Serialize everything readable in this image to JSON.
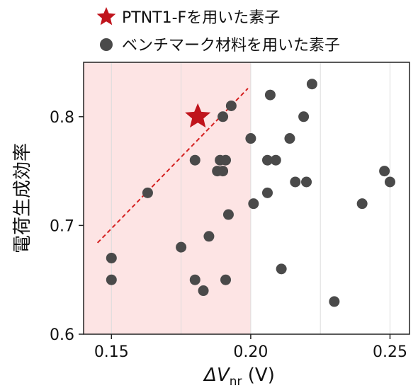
{
  "chart_data": {
    "type": "scatter",
    "xlabel": "ΔV",
    "xlabel_sub": "nr",
    "xlabel_unit": " (V)",
    "ylabel": "電荷生成効率",
    "xlim": [
      0.14,
      0.257
    ],
    "ylim": [
      0.6,
      0.85
    ],
    "xticks": [
      0.15,
      0.2,
      0.25
    ],
    "xtick_labels": [
      "0.15",
      "0.20",
      "0.25"
    ],
    "yticks": [
      0.6,
      0.7,
      0.8
    ],
    "ytick_labels": [
      "0.6",
      "0.7",
      "0.8"
    ],
    "vertical_gridlines": [
      0.15,
      0.175,
      0.2,
      0.225,
      0.25
    ],
    "shaded_region_x": [
      0.14,
      0.2
    ],
    "legend_position": "top-left, above plot",
    "series": [
      {
        "name": "PTNT1-Fを用いた素子",
        "marker": "star",
        "color": "#c0141c",
        "points": [
          [
            0.181,
            0.8
          ]
        ]
      },
      {
        "name": "ベンチマーク材料を用いた素子",
        "marker": "circle",
        "color": "#4a4a4a",
        "points": [
          [
            0.15,
            0.67
          ],
          [
            0.15,
            0.65
          ],
          [
            0.163,
            0.73
          ],
          [
            0.175,
            0.68
          ],
          [
            0.18,
            0.76
          ],
          [
            0.18,
            0.65
          ],
          [
            0.183,
            0.64
          ],
          [
            0.185,
            0.69
          ],
          [
            0.188,
            0.75
          ],
          [
            0.189,
            0.76
          ],
          [
            0.19,
            0.8
          ],
          [
            0.19,
            0.75
          ],
          [
            0.191,
            0.76
          ],
          [
            0.191,
            0.65
          ],
          [
            0.192,
            0.71
          ],
          [
            0.193,
            0.81
          ],
          [
            0.2,
            0.78
          ],
          [
            0.201,
            0.72
          ],
          [
            0.206,
            0.76
          ],
          [
            0.206,
            0.73
          ],
          [
            0.207,
            0.82
          ],
          [
            0.209,
            0.76
          ],
          [
            0.211,
            0.66
          ],
          [
            0.214,
            0.78
          ],
          [
            0.216,
            0.74
          ],
          [
            0.219,
            0.8
          ],
          [
            0.22,
            0.74
          ],
          [
            0.222,
            0.83
          ],
          [
            0.23,
            0.63
          ],
          [
            0.24,
            0.72
          ],
          [
            0.248,
            0.75
          ],
          [
            0.25,
            0.74
          ]
        ]
      }
    ],
    "trend_line": {
      "style": "dashed",
      "color": "#d42020",
      "from": [
        0.145,
        0.684
      ],
      "to": [
        0.199,
        0.826
      ]
    }
  },
  "colors": {
    "shade": "#fde4e4",
    "star": "#c0141c",
    "dots": "#4a4a4a",
    "trend": "#d42020",
    "grid": "#dcdcdc"
  }
}
